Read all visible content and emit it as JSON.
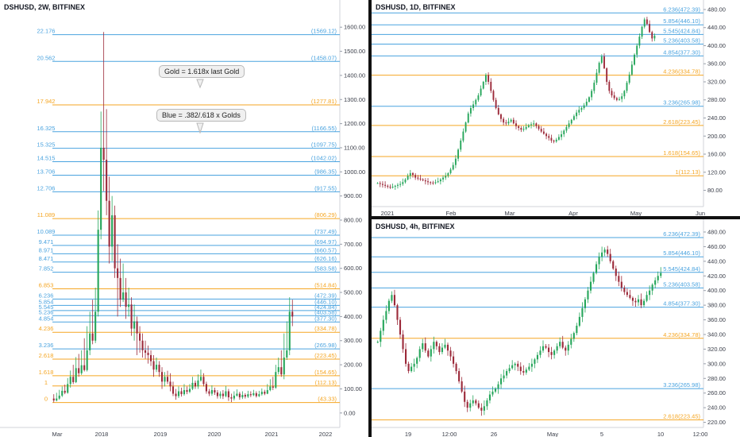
{
  "colors": {
    "gold": "#f5a623",
    "blue": "#4aa3df",
    "bull": "#26a65b",
    "bear": "#9c2a3a",
    "grid": "#ffffff",
    "axis": "#3a3e49"
  },
  "notes": {
    "gold": "Gold = 1.618x last Gold",
    "blue": "Blue = .382/.618 x Golds"
  },
  "chart_data": [
    {
      "type": "candlestick",
      "title": "DSHUSD, 2W, BITFINEX",
      "ylim": [
        -60,
        1660
      ],
      "y_ticks": [
        0,
        100,
        200,
        300,
        400,
        500,
        600,
        700,
        800,
        900,
        1000,
        1100,
        1200,
        1300,
        1400,
        1500,
        1600
      ],
      "y_tick_labels": [
        "0.00",
        "100.00",
        "200.00",
        "300.00",
        "400.00",
        "500.00",
        "600.00",
        "700.00",
        "800.00",
        "900.00",
        "1000.00",
        "1100.00",
        "1200.00",
        "1300.00",
        "1400.00",
        "1500.00",
        "1600.00"
      ],
      "x_labels": [
        "Mar",
        "2018",
        "2019",
        "2020",
        "2021",
        "2022"
      ],
      "levels": [
        {
          "ratio": "22.176",
          "label": "(1569.12)",
          "value": 1569.12,
          "kind": "blue"
        },
        {
          "ratio": "20.562",
          "label": "(1458.07)",
          "value": 1458.07,
          "kind": "blue"
        },
        {
          "ratio": "17.942",
          "label": "(1277.81)",
          "value": 1277.81,
          "kind": "gold"
        },
        {
          "ratio": "16.325",
          "label": "(1166.55)",
          "value": 1166.55,
          "kind": "blue"
        },
        {
          "ratio": "15.325",
          "label": "(1097.75)",
          "value": 1097.75,
          "kind": "blue"
        },
        {
          "ratio": "14.515",
          "label": "(1042.02)",
          "value": 1042.02,
          "kind": "blue"
        },
        {
          "ratio": "13.706",
          "label": "(986.35)",
          "value": 986.35,
          "kind": "blue"
        },
        {
          "ratio": "12.706",
          "label": "(917.55)",
          "value": 917.55,
          "kind": "blue"
        },
        {
          "ratio": "11.089",
          "label": "(806.29)",
          "value": 806.29,
          "kind": "gold"
        },
        {
          "ratio": "10.089",
          "label": "(737.49)",
          "value": 737.49,
          "kind": "blue"
        },
        {
          "ratio": "9.471",
          "label": "(694.97)",
          "value": 694.97,
          "kind": "blue"
        },
        {
          "ratio": "8.971",
          "label": "(660.57)",
          "value": 660.57,
          "kind": "blue"
        },
        {
          "ratio": "8.471",
          "label": "(626.16)",
          "value": 626.16,
          "kind": "blue"
        },
        {
          "ratio": "7.852",
          "label": "(583.58)",
          "value": 583.58,
          "kind": "blue"
        },
        {
          "ratio": "6.853",
          "label": "(514.84)",
          "value": 514.84,
          "kind": "gold"
        },
        {
          "ratio": "6.236",
          "label": "(472.39)",
          "value": 472.39,
          "kind": "blue"
        },
        {
          "ratio": "5.854",
          "label": "(446.10)",
          "value": 446.1,
          "kind": "blue"
        },
        {
          "ratio": "5.545",
          "label": "(424.84)",
          "value": 424.84,
          "kind": "blue"
        },
        {
          "ratio": "5.236",
          "label": "(403.58)",
          "value": 403.58,
          "kind": "blue"
        },
        {
          "ratio": "4.854",
          "label": "(377.30)",
          "value": 377.3,
          "kind": "blue"
        },
        {
          "ratio": "4.236",
          "label": "(334.78)",
          "value": 334.78,
          "kind": "gold"
        },
        {
          "ratio": "3.236",
          "label": "(265.98)",
          "value": 265.98,
          "kind": "blue"
        },
        {
          "ratio": "2.618",
          "label": "(223.45)",
          "value": 223.45,
          "kind": "gold"
        },
        {
          "ratio": "1.618",
          "label": "(154.65)",
          "value": 154.65,
          "kind": "gold"
        },
        {
          "ratio": "1",
          "label": "(112.13)",
          "value": 112.13,
          "kind": "gold"
        },
        {
          "ratio": "0",
          "label": "(43.33)",
          "value": 43.33,
          "kind": "gold"
        }
      ],
      "candles": [
        [
          60,
          52,
          78,
          44
        ],
        [
          52,
          60,
          84,
          48
        ],
        [
          60,
          72,
          96,
          55
        ],
        [
          72,
          92,
          110,
          66
        ],
        [
          92,
          84,
          118,
          78
        ],
        [
          84,
          120,
          145,
          80
        ],
        [
          120,
          150,
          176,
          105
        ],
        [
          150,
          128,
          200,
          120
        ],
        [
          128,
          186,
          232,
          124
        ],
        [
          186,
          165,
          245,
          150
        ],
        [
          165,
          198,
          260,
          158
        ],
        [
          198,
          178,
          310,
          172
        ],
        [
          178,
          260,
          360,
          172
        ],
        [
          260,
          330,
          420,
          240
        ],
        [
          330,
          300,
          470,
          285
        ],
        [
          300,
          420,
          520,
          290
        ],
        [
          420,
          760,
          840,
          400
        ],
        [
          760,
          1100,
          1250,
          720
        ],
        [
          1100,
          1050,
          1580,
          920
        ],
        [
          1050,
          880,
          1260,
          820
        ],
        [
          880,
          690,
          980,
          620
        ],
        [
          690,
          820,
          900,
          630
        ],
        [
          820,
          600,
          860,
          560
        ],
        [
          600,
          560,
          700,
          400
        ],
        [
          560,
          470,
          640,
          440
        ],
        [
          470,
          500,
          620,
          460
        ],
        [
          500,
          440,
          560,
          390
        ],
        [
          440,
          450,
          520,
          400
        ],
        [
          450,
          350,
          480,
          320
        ],
        [
          350,
          380,
          450,
          300
        ],
        [
          380,
          330,
          400,
          240
        ],
        [
          330,
          300,
          360,
          250
        ],
        [
          300,
          260,
          330,
          230
        ],
        [
          260,
          250,
          300,
          225
        ],
        [
          250,
          240,
          280,
          205
        ],
        [
          240,
          215,
          260,
          195
        ],
        [
          215,
          180,
          240,
          150
        ],
        [
          180,
          200,
          230,
          170
        ],
        [
          200,
          170,
          215,
          150
        ],
        [
          170,
          130,
          190,
          100
        ],
        [
          130,
          150,
          170,
          110
        ],
        [
          150,
          130,
          175,
          120
        ],
        [
          130,
          110,
          165,
          90
        ],
        [
          110,
          80,
          130,
          70
        ],
        [
          80,
          70,
          100,
          55
        ],
        [
          70,
          90,
          110,
          62
        ],
        [
          90,
          78,
          105,
          68
        ],
        [
          78,
          95,
          120,
          72
        ],
        [
          95,
          88,
          110,
          78
        ],
        [
          88,
          100,
          120,
          82
        ],
        [
          100,
          125,
          150,
          95
        ],
        [
          125,
          110,
          135,
          100
        ],
        [
          110,
          135,
          160,
          100
        ],
        [
          135,
          150,
          180,
          130
        ],
        [
          150,
          120,
          165,
          110
        ],
        [
          120,
          90,
          130,
          80
        ],
        [
          90,
          80,
          100,
          70
        ],
        [
          80,
          95,
          115,
          72
        ],
        [
          95,
          85,
          105,
          75
        ],
        [
          85,
          70,
          95,
          60
        ],
        [
          70,
          80,
          90,
          60
        ],
        [
          80,
          70,
          95,
          58
        ],
        [
          70,
          90,
          112,
          65
        ],
        [
          90,
          65,
          100,
          50
        ],
        [
          65,
          60,
          80,
          45
        ],
        [
          60,
          72,
          90,
          52
        ],
        [
          72,
          80,
          98,
          68
        ],
        [
          80,
          65,
          88,
          55
        ],
        [
          65,
          75,
          90,
          58
        ],
        [
          75,
          68,
          82,
          60
        ],
        [
          68,
          78,
          92,
          62
        ],
        [
          78,
          74,
          90,
          66
        ],
        [
          74,
          82,
          96,
          70
        ],
        [
          82,
          70,
          90,
          64
        ],
        [
          70,
          78,
          92,
          66
        ],
        [
          78,
          88,
          102,
          72
        ],
        [
          88,
          80,
          96,
          74
        ],
        [
          80,
          95,
          120,
          78
        ],
        [
          95,
          110,
          140,
          90
        ],
        [
          110,
          105,
          150,
          95
        ],
        [
          105,
          170,
          200,
          100
        ],
        [
          170,
          190,
          230,
          160
        ],
        [
          190,
          160,
          260,
          150
        ],
        [
          160,
          230,
          330,
          140
        ],
        [
          230,
          260,
          380,
          220
        ],
        [
          260,
          420,
          480,
          240
        ],
        [
          420,
          400,
          470,
          360
        ]
      ]
    },
    {
      "type": "candlestick",
      "title": "DSHUSD, 1D, BITFINEX",
      "ylim": [
        44,
        494
      ],
      "y_ticks": [
        80,
        120,
        160,
        200,
        240,
        280,
        320,
        360,
        400,
        440,
        480
      ],
      "y_tick_labels": [
        "80.00",
        "120.00",
        "160.00",
        "200.00",
        "240.00",
        "280.00",
        "320.00",
        "360.00",
        "400.00",
        "440.00",
        "480.00"
      ],
      "x_labels": [
        "2021",
        "Feb",
        "Mar",
        "Apr",
        "May",
        "Jun"
      ],
      "levels": [
        {
          "ratio": "6.236",
          "label": "(472.39)",
          "value": 472.39,
          "kind": "blue"
        },
        {
          "ratio": "5.854",
          "label": "(446.10)",
          "value": 446.1,
          "kind": "blue"
        },
        {
          "ratio": "5.545",
          "label": "(424.84)",
          "value": 424.84,
          "kind": "blue"
        },
        {
          "ratio": "5.236",
          "label": "(403.58)",
          "value": 403.58,
          "kind": "blue"
        },
        {
          "ratio": "4.854",
          "label": "(377.30)",
          "value": 377.3,
          "kind": "blue"
        },
        {
          "ratio": "4.236",
          "label": "(334.78)",
          "value": 334.78,
          "kind": "gold"
        },
        {
          "ratio": "3.236",
          "label": "(265.98)",
          "value": 265.98,
          "kind": "blue"
        },
        {
          "ratio": "2.618",
          "label": "(223.45)",
          "value": 223.45,
          "kind": "gold"
        },
        {
          "ratio": "1.618",
          "label": "(154.65)",
          "value": 154.65,
          "kind": "gold"
        },
        {
          "ratio": "1",
          "label": "(112.13)",
          "value": 112.13,
          "kind": "gold"
        }
      ],
      "path": [
        96,
        94,
        92,
        90,
        88,
        86,
        88,
        90,
        92,
        94,
        98,
        104,
        112,
        118,
        114,
        108,
        106,
        104,
        102,
        100,
        98,
        97,
        96,
        98,
        100,
        104,
        108,
        112,
        118,
        126,
        136,
        150,
        170,
        190,
        210,
        230,
        250,
        262,
        270,
        280,
        290,
        305,
        320,
        335,
        320,
        300,
        280,
        262,
        248,
        238,
        230,
        228,
        232,
        236,
        228,
        222,
        218,
        214,
        216,
        220,
        224,
        226,
        228,
        222,
        216,
        210,
        205,
        200,
        196,
        190,
        188,
        192,
        198,
        204,
        212,
        220,
        228,
        236,
        244,
        252,
        258,
        262,
        268,
        276,
        286,
        300,
        318,
        340,
        362,
        376,
        350,
        320,
        300,
        290,
        284,
        280,
        282,
        288,
        300,
        318,
        336,
        358,
        380,
        400,
        420,
        442,
        458,
        448,
        430,
        416,
        422
      ],
      "x_label_positions": [
        0,
        0.18,
        0.35,
        0.52,
        0.7,
        0.88
      ]
    },
    {
      "type": "candlestick",
      "title": "DSHUSD, 4h, BITFINEX",
      "ylim": [
        213,
        493
      ],
      "y_ticks": [
        220,
        240,
        260,
        280,
        300,
        320,
        340,
        360,
        380,
        400,
        420,
        440,
        460,
        480
      ],
      "y_tick_labels": [
        "220.00",
        "240.00",
        "260.00",
        "280.00",
        "300.00",
        "320.00",
        "340.00",
        "360.00",
        "380.00",
        "400.00",
        "420.00",
        "440.00",
        "460.00",
        "480.00"
      ],
      "x_labels": [
        "19",
        "12:00",
        "26",
        "May",
        "5",
        "10",
        "12:00"
      ],
      "levels": [
        {
          "ratio": "6.236",
          "label": "(472.39)",
          "value": 472.39,
          "kind": "blue"
        },
        {
          "ratio": "5.854",
          "label": "(446.10)",
          "value": 446.1,
          "kind": "blue"
        },
        {
          "ratio": "5.545",
          "label": "(424.84)",
          "value": 424.84,
          "kind": "blue"
        },
        {
          "ratio": "5.236",
          "label": "(403.58)",
          "value": 403.58,
          "kind": "blue"
        },
        {
          "ratio": "4.854",
          "label": "(377.30)",
          "value": 377.3,
          "kind": "blue"
        },
        {
          "ratio": "4.236",
          "label": "(334.78)",
          "value": 334.78,
          "kind": "gold"
        },
        {
          "ratio": "3.236",
          "label": "(265.98)",
          "value": 265.98,
          "kind": "blue"
        },
        {
          "ratio": "2.618",
          "label": "(223.45)",
          "value": 223.45,
          "kind": "gold"
        }
      ],
      "path": [
        330,
        345,
        360,
        372,
        386,
        394,
        380,
        360,
        340,
        320,
        300,
        290,
        296,
        300,
        308,
        320,
        328,
        318,
        310,
        320,
        330,
        324,
        316,
        322,
        326,
        318,
        310,
        300,
        290,
        276,
        262,
        248,
        240,
        246,
        250,
        246,
        240,
        236,
        242,
        250,
        258,
        262,
        266,
        272,
        280,
        284,
        290,
        294,
        298,
        300,
        296,
        290,
        288,
        292,
        296,
        300,
        306,
        312,
        318,
        324,
        322,
        316,
        312,
        318,
        324,
        330,
        322,
        318,
        326,
        334,
        342,
        352,
        364,
        376,
        388,
        400,
        412,
        424,
        436,
        446,
        452,
        456,
        450,
        440,
        430,
        420,
        412,
        404,
        398,
        394,
        390,
        386,
        384,
        388,
        380,
        386,
        394,
        400,
        408,
        414,
        420,
        424
      ]
    }
  ]
}
